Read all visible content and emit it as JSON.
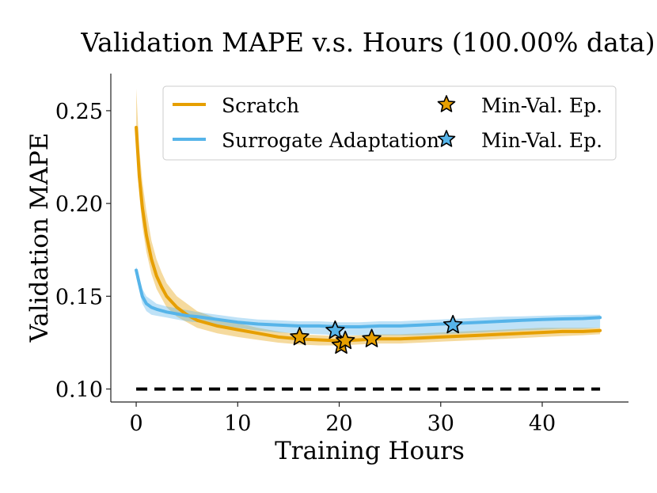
{
  "chart_data": {
    "type": "line",
    "title": "Validation MAPE v.s. Hours (100.00% data)",
    "xlabel": "Training Hours",
    "ylabel": "Validation MAPE",
    "xlim": [
      -2.5,
      48.5
    ],
    "ylim": [
      0.093,
      0.27
    ],
    "xticks": [
      0,
      10,
      20,
      30,
      40
    ],
    "xtick_labels": [
      "0",
      "10",
      "20",
      "30",
      "40"
    ],
    "yticks": [
      0.1,
      0.15,
      0.2,
      0.25
    ],
    "ytick_labels": [
      "0.10",
      "0.15",
      "0.20",
      "0.25"
    ],
    "legend": {
      "placement": "top-right",
      "entries": [
        "Scratch",
        "Surrogate Adaptation",
        "Min-Val. Ep.",
        "Min-Val. Ep."
      ]
    },
    "series": [
      {
        "name": "Scratch",
        "color": "#e69f00",
        "x": [
          0,
          0.3,
          0.6,
          1,
          1.5,
          2,
          2.5,
          3,
          4,
          5,
          6,
          8,
          10,
          12,
          14,
          16,
          18,
          20,
          22,
          24,
          26,
          28,
          30,
          32,
          34,
          36,
          38,
          40,
          42,
          44,
          45.7
        ],
        "y": [
          0.241,
          0.215,
          0.198,
          0.183,
          0.17,
          0.161,
          0.155,
          0.15,
          0.144,
          0.14,
          0.137,
          0.134,
          0.132,
          0.13,
          0.128,
          0.127,
          0.1265,
          0.126,
          0.1265,
          0.127,
          0.127,
          0.1275,
          0.128,
          0.1285,
          0.129,
          0.1295,
          0.13,
          0.1305,
          0.131,
          0.131,
          0.1315
        ],
        "band_upper": [
          0.262,
          0.23,
          0.212,
          0.196,
          0.18,
          0.17,
          0.163,
          0.157,
          0.15,
          0.146,
          0.142,
          0.138,
          0.1355,
          0.133,
          0.131,
          0.1295,
          0.129,
          0.1285,
          0.129,
          0.1295,
          0.1295,
          0.13,
          0.1305,
          0.131,
          0.1315,
          0.132,
          0.1325,
          0.133,
          0.133,
          0.133,
          0.133
        ],
        "band_lower": [
          0.23,
          0.205,
          0.188,
          0.174,
          0.162,
          0.154,
          0.149,
          0.144,
          0.139,
          0.136,
          0.133,
          0.13,
          0.128,
          0.1265,
          0.125,
          0.124,
          0.1235,
          0.1235,
          0.124,
          0.1245,
          0.1245,
          0.125,
          0.1255,
          0.126,
          0.1265,
          0.127,
          0.1275,
          0.128,
          0.1285,
          0.129,
          0.1295
        ],
        "min_val_points": [
          [
            16.1,
            0.128
          ],
          [
            20.2,
            0.1235
          ],
          [
            20.6,
            0.126
          ],
          [
            23.2,
            0.127
          ]
        ]
      },
      {
        "name": "Surrogate Adaptation",
        "color": "#56b4e9",
        "x": [
          0,
          0.3,
          0.6,
          1,
          1.5,
          2,
          3,
          4,
          5,
          6,
          8,
          10,
          12,
          14,
          16,
          18,
          20,
          22,
          24,
          26,
          28,
          30,
          32,
          34,
          36,
          38,
          40,
          42,
          44,
          45.7
        ],
        "y": [
          0.164,
          0.157,
          0.15,
          0.146,
          0.144,
          0.143,
          0.1415,
          0.1405,
          0.1395,
          0.139,
          0.1375,
          0.136,
          0.135,
          0.1345,
          0.134,
          0.134,
          0.1335,
          0.1335,
          0.134,
          0.134,
          0.1345,
          0.135,
          0.1355,
          0.136,
          0.1365,
          0.137,
          0.1375,
          0.1378,
          0.138,
          0.1385
        ],
        "band_upper": [
          0.166,
          0.16,
          0.154,
          0.15,
          0.148,
          0.146,
          0.1445,
          0.1435,
          0.1425,
          0.1415,
          0.14,
          0.1385,
          0.1375,
          0.137,
          0.1365,
          0.1365,
          0.136,
          0.136,
          0.1365,
          0.1365,
          0.137,
          0.1375,
          0.138,
          0.1385,
          0.139,
          0.1392,
          0.1395,
          0.1398,
          0.14,
          0.14
        ],
        "band_lower": [
          0.16,
          0.153,
          0.146,
          0.142,
          0.14,
          0.1395,
          0.1385,
          0.1375,
          0.1365,
          0.136,
          0.1345,
          0.133,
          0.1315,
          0.1305,
          0.13,
          0.1295,
          0.129,
          0.129,
          0.129,
          0.129,
          0.129,
          0.1295,
          0.13,
          0.1305,
          0.131,
          0.1315,
          0.132,
          0.1325,
          0.1325,
          0.133
        ],
        "min_val_points": [
          [
            19.6,
            0.1315
          ],
          [
            31.2,
            0.1345
          ]
        ]
      }
    ],
    "reference_line": {
      "y": 0.1,
      "x_start": 0,
      "x_end": 45.7,
      "style": "dashed",
      "color": "#000000"
    }
  }
}
